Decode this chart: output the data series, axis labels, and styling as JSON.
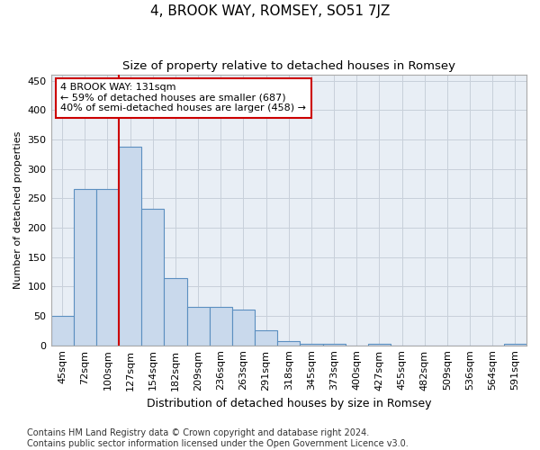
{
  "title": "4, BROOK WAY, ROMSEY, SO51 7JZ",
  "subtitle": "Size of property relative to detached houses in Romsey",
  "xlabel": "Distribution of detached houses by size in Romsey",
  "ylabel": "Number of detached properties",
  "bar_labels": [
    "45sqm",
    "72sqm",
    "100sqm",
    "127sqm",
    "154sqm",
    "182sqm",
    "209sqm",
    "236sqm",
    "263sqm",
    "291sqm",
    "318sqm",
    "345sqm",
    "373sqm",
    "400sqm",
    "427sqm",
    "455sqm",
    "482sqm",
    "509sqm",
    "536sqm",
    "564sqm",
    "591sqm"
  ],
  "bar_values": [
    50,
    265,
    265,
    338,
    232,
    115,
    65,
    65,
    60,
    25,
    7,
    2,
    2,
    0,
    2,
    0,
    0,
    0,
    0,
    0,
    2
  ],
  "bar_color": "#c9d9ec",
  "bar_edge_color": "#5b8fc0",
  "vline_x": 2.5,
  "vline_color": "#cc0000",
  "annotation_text": "4 BROOK WAY: 131sqm\n← 59% of detached houses are smaller (687)\n40% of semi-detached houses are larger (458) →",
  "annotation_box_color": "#ffffff",
  "annotation_box_edge": "#cc0000",
  "ylim": [
    0,
    460
  ],
  "yticks": [
    0,
    50,
    100,
    150,
    200,
    250,
    300,
    350,
    400,
    450
  ],
  "grid_color": "#c8d0da",
  "bg_color": "#e8eef5",
  "fig_bg_color": "#ffffff",
  "footnote": "Contains HM Land Registry data © Crown copyright and database right 2024.\nContains public sector information licensed under the Open Government Licence v3.0.",
  "title_fontsize": 11,
  "subtitle_fontsize": 9.5,
  "xlabel_fontsize": 9,
  "ylabel_fontsize": 8,
  "tick_fontsize": 8,
  "footnote_fontsize": 7,
  "annotation_fontsize": 8
}
